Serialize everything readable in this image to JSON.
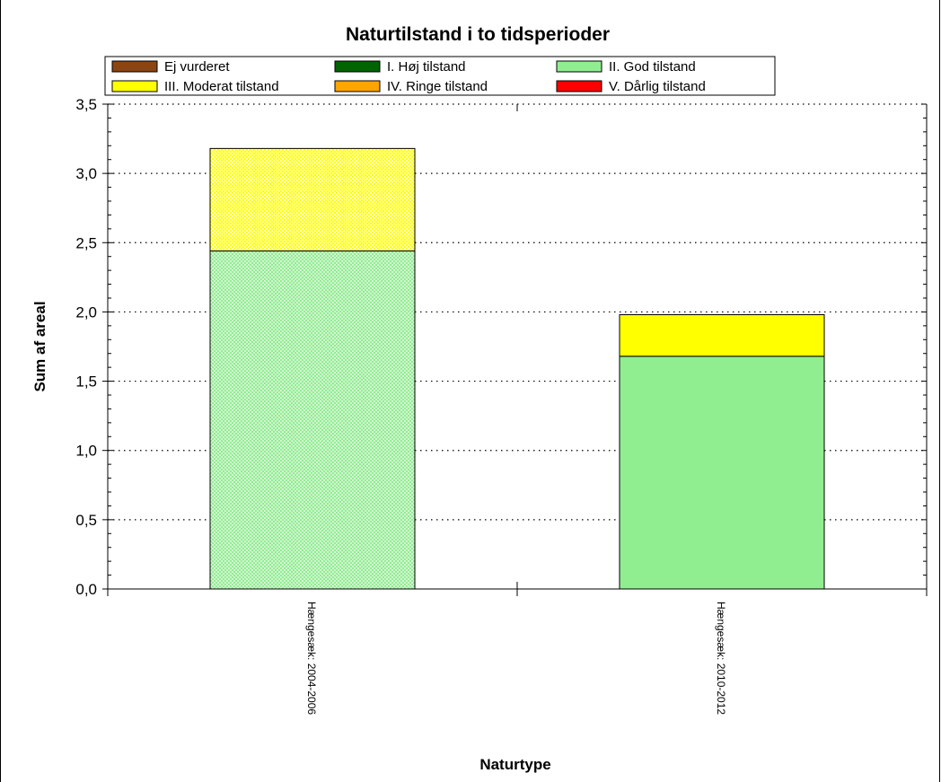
{
  "chart_data": {
    "type": "bar",
    "stacked": true,
    "title": "Naturtilstand i to tidsperioder",
    "xlabel": "Naturtype",
    "ylabel": "Sum af areal",
    "ylim": [
      0,
      3.5
    ],
    "yticks": [
      "0,0",
      "0,5",
      "1,0",
      "1,5",
      "2,0",
      "2,5",
      "3,0",
      "3,5"
    ],
    "grid": true,
    "legend_position": "top",
    "categories": [
      "Hængesæk: 2004-2006",
      "Hængesæk: 2010-2012"
    ],
    "series": [
      {
        "name": "Ej vurderet",
        "color": "#8B4513",
        "values": [
          0,
          0
        ]
      },
      {
        "name": "I. Høj tilstand",
        "color": "#006400",
        "values": [
          0,
          0
        ]
      },
      {
        "name": "II. God tilstand",
        "color": "#90EE90",
        "values": [
          2.44,
          1.68
        ],
        "hatched": [
          true,
          false
        ]
      },
      {
        "name": "III. Moderat tilstand",
        "color": "#FFFF00",
        "values": [
          0.74,
          0.3
        ],
        "hatched": [
          true,
          false
        ]
      },
      {
        "name": "IV. Ringe tilstand",
        "color": "#FFA500",
        "values": [
          0,
          0
        ]
      },
      {
        "name": "V. Dårlig tilstand",
        "color": "#FF0000",
        "values": [
          0,
          0
        ]
      }
    ]
  }
}
